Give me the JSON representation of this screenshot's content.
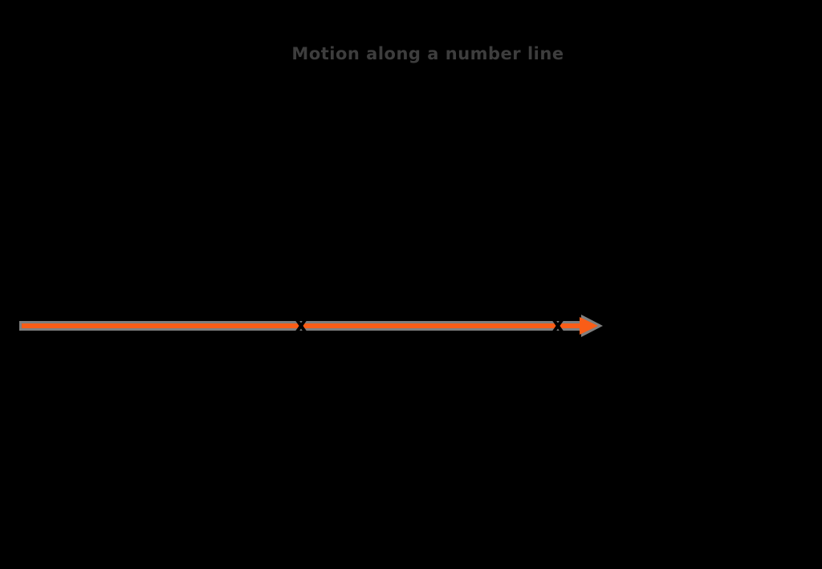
{
  "figure": {
    "background_color": "#000000",
    "title": {
      "text": "Motion along a number line",
      "color": "#3d3d3d"
    },
    "arrow": {
      "description": "horizontal arrow pointing right",
      "direction": "right",
      "core_color": "#f95d17",
      "outline_color": "#7f7f7f"
    },
    "markers": [
      {
        "shape": "x",
        "color": "#000000",
        "position": "mid-left on arrow shaft"
      },
      {
        "shape": "x",
        "color": "#000000",
        "position": "near arrowhead on arrow shaft"
      }
    ]
  }
}
